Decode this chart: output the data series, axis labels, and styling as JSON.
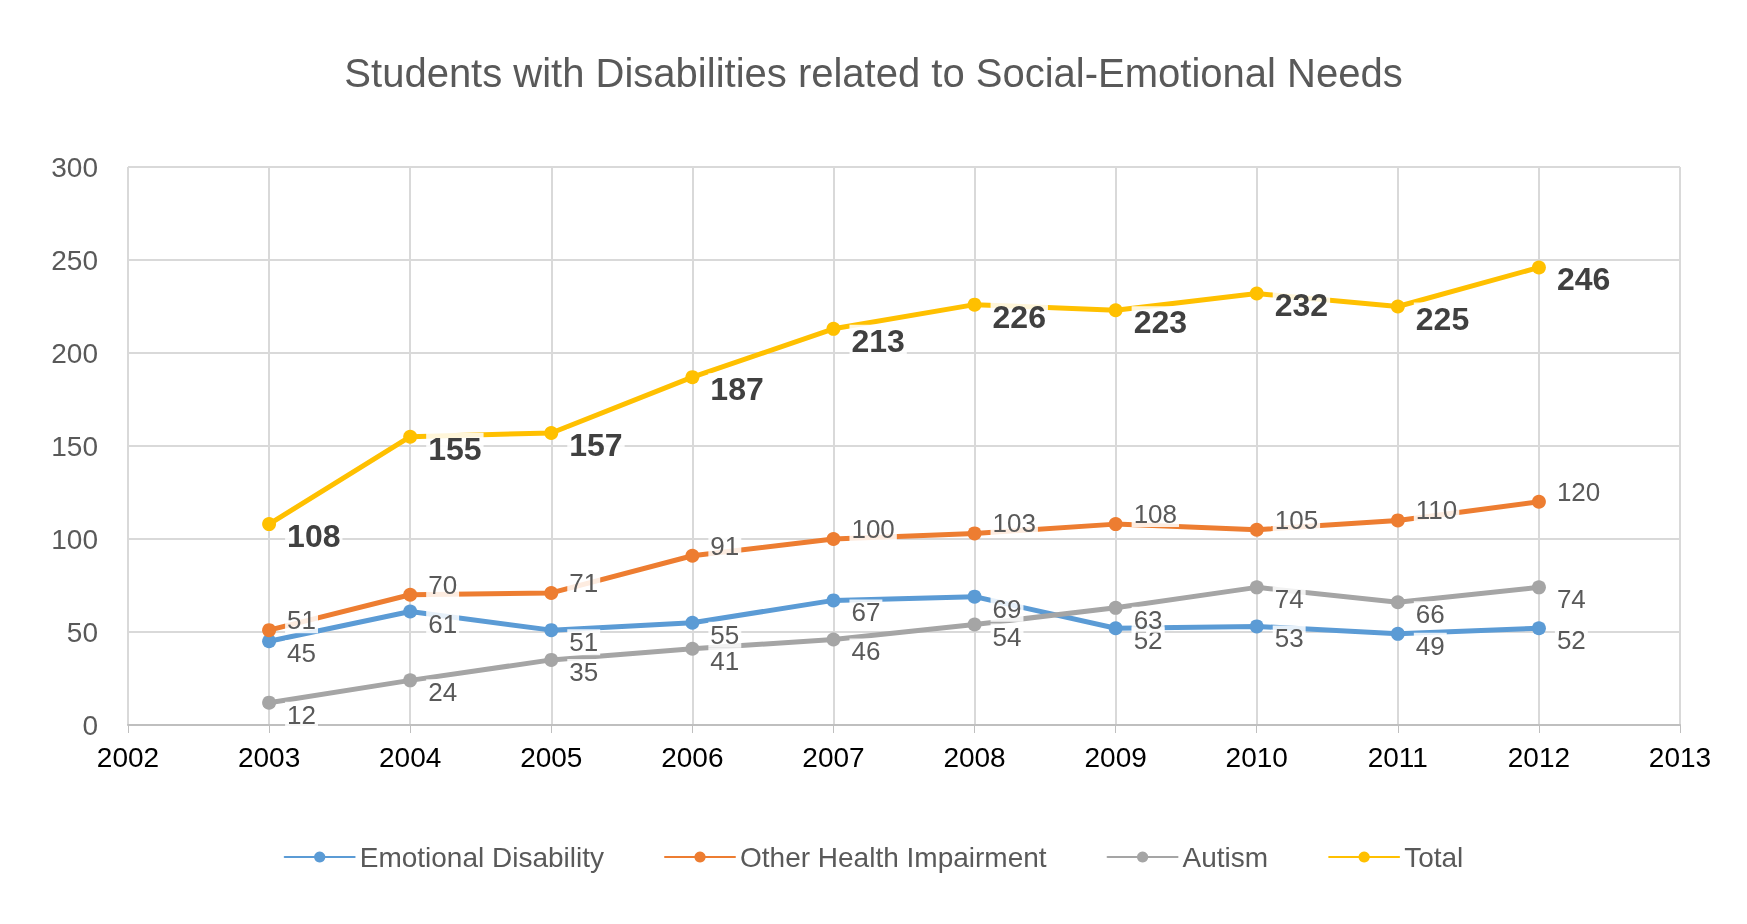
{
  "chart_data": {
    "type": "line",
    "title": "Students with Disabilities related to Social-Emotional Needs",
    "x": [
      2003,
      2004,
      2005,
      2006,
      2007,
      2008,
      2009,
      2010,
      2011,
      2012
    ],
    "xlim": [
      2002,
      2013
    ],
    "xticks": [
      2002,
      2003,
      2004,
      2005,
      2006,
      2007,
      2008,
      2009,
      2010,
      2011,
      2012,
      2013
    ],
    "ylim": [
      0,
      300
    ],
    "yticks": [
      0,
      50,
      100,
      150,
      200,
      250,
      300
    ],
    "grid": true,
    "legend": "bottom",
    "marker": "circle",
    "line_style": "solid",
    "data_labels": true,
    "series": [
      {
        "name": "Emotional Disability",
        "color": "#5b9bd5",
        "values": [
          45,
          61,
          51,
          55,
          67,
          69,
          52,
          53,
          49,
          52
        ]
      },
      {
        "name": "Other Health Impairment",
        "color": "#ed7d31",
        "values": [
          51,
          70,
          71,
          91,
          100,
          103,
          108,
          105,
          110,
          120
        ]
      },
      {
        "name": "Autism",
        "color": "#a5a5a5",
        "values": [
          12,
          24,
          35,
          41,
          46,
          54,
          63,
          74,
          66,
          74
        ]
      },
      {
        "name": "Total",
        "color": "#ffc000",
        "values": [
          108,
          155,
          157,
          187,
          213,
          226,
          223,
          232,
          225,
          246
        ]
      }
    ]
  }
}
